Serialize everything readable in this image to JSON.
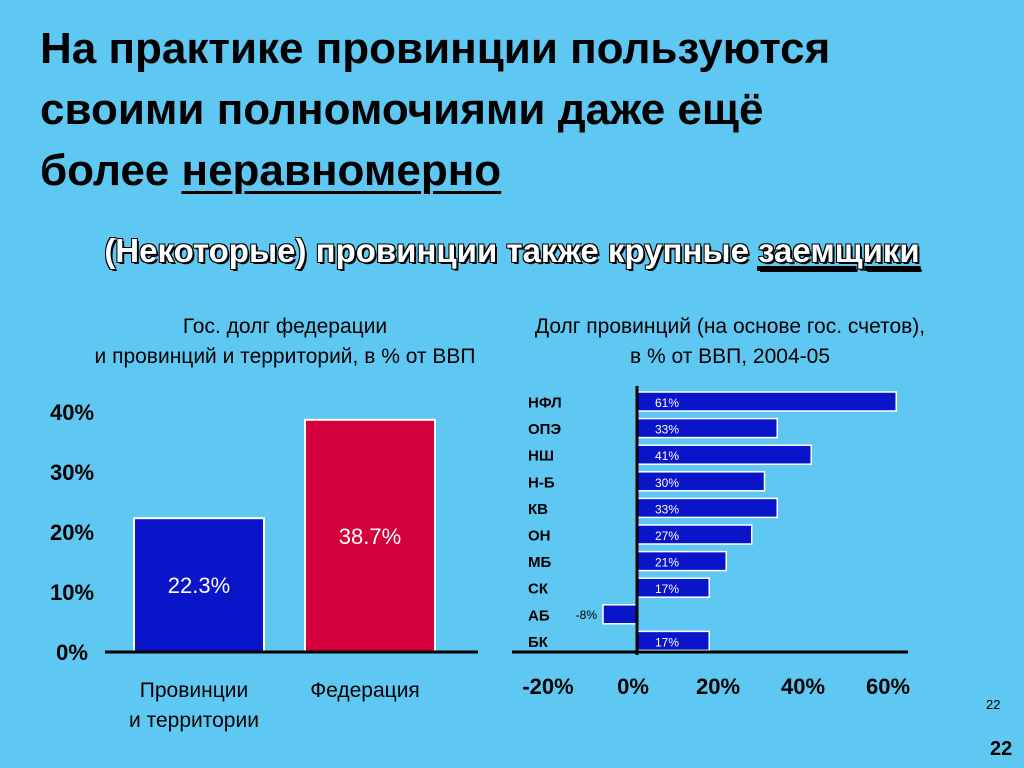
{
  "title": {
    "line1": "На практике провинции пользуются",
    "line2": "своими полномочиями даже ещё",
    "line3_prefix": "более ",
    "line3_underlined": "неравномерно"
  },
  "subtitle": {
    "prefix": "(Некоторые) провинции также крупные ",
    "underlined": "заемщики"
  },
  "chart_data": [
    {
      "type": "bar",
      "title_line1": "Гос. долг федерации",
      "title_line2": "и провинций и территорий, в % от ВВП",
      "categories": [
        "Провинции\nи территории",
        "Федерация"
      ],
      "category_lines": [
        [
          "Провинции",
          "и территории"
        ],
        [
          "Федерация"
        ]
      ],
      "values": [
        22.3,
        38.7
      ],
      "value_labels": [
        "22.3%",
        "38.7%"
      ],
      "colors": [
        "#0a14c8",
        "#d4003c"
      ],
      "ylim": [
        0,
        40
      ],
      "yticks": [
        0,
        10,
        20,
        30,
        40
      ],
      "ytick_labels": [
        "0%",
        "10%",
        "20%",
        "30%",
        "40%"
      ]
    },
    {
      "type": "bar",
      "orientation": "horizontal",
      "title_line1": "Долг провинций (на основе гос. счетов),",
      "title_line2": "в % от ВВП, 2004-05",
      "categories": [
        "НФЛ",
        "ОПЭ",
        "НШ",
        "Н-Б",
        "КВ",
        "ОН",
        "МБ",
        "СК",
        "АБ",
        "БК"
      ],
      "values": [
        61,
        33,
        41,
        30,
        33,
        27,
        21,
        17,
        -8,
        17
      ],
      "value_labels": [
        "61%",
        "33%",
        "41%",
        "30%",
        "33%",
        "27%",
        "21%",
        "17%",
        "-8%",
        "17%"
      ],
      "color": "#0a14c8",
      "xlim": [
        -20,
        60
      ],
      "xticks": [
        -20,
        0,
        20,
        40,
        60
      ],
      "xtick_labels": [
        "-20%",
        "0%",
        "20%",
        "40%",
        "60%"
      ]
    }
  ],
  "page_number": "22"
}
